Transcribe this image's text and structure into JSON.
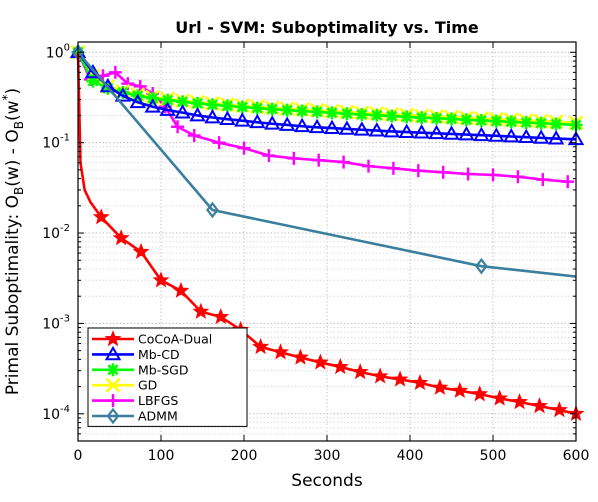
{
  "chart_data": {
    "type": "line",
    "title": "Url - SVM: Suboptimality vs. Time",
    "xlabel": "Seconds",
    "ylabel": {
      "main": "Primal Suboptimality: O",
      "sub1": "B",
      "mid": "(w) - O",
      "sub2": "B",
      "end": "(w",
      "sup": "*",
      "close": ")"
    },
    "xlim": [
      0,
      600
    ],
    "ylim": [
      5e-05,
      1.3
    ],
    "yscale": "log",
    "grid": "on",
    "legend_location": "bottom-left",
    "xticks": [
      0,
      100,
      200,
      300,
      400,
      500,
      600
    ],
    "yticks": [
      {
        "value": 1,
        "base": "10",
        "exp": "0"
      },
      {
        "value": 0.1,
        "base": "10",
        "exp": "-1"
      },
      {
        "value": 0.01,
        "base": "10",
        "exp": "-2"
      },
      {
        "value": 0.001,
        "base": "10",
        "exp": "-3"
      },
      {
        "value": 0.0001,
        "base": "10",
        "exp": "-4"
      }
    ],
    "series": [
      {
        "name": "CoCoA-Dual",
        "color": "#ff0000",
        "marker": "star",
        "x": [
          0,
          3,
          8,
          15,
          28,
          52,
          76,
          100,
          124,
          148,
          172,
          196,
          220,
          244,
          268,
          292,
          316,
          340,
          364,
          388,
          412,
          436,
          460,
          484,
          508,
          532,
          556,
          580,
          600
        ],
        "y": [
          1,
          0.06,
          0.03,
          0.022,
          0.015,
          0.0088,
          0.0062,
          0.003,
          0.0023,
          0.00135,
          0.00118,
          0.00085,
          0.00055,
          0.00048,
          0.00042,
          0.00037,
          0.00033,
          0.00029,
          0.00026,
          0.00024,
          0.00022,
          0.000195,
          0.00018,
          0.000165,
          0.000148,
          0.000135,
          0.000122,
          0.00011,
          0.0001
        ],
        "marker_x": [
          28,
          52,
          76,
          100,
          124,
          148,
          172,
          196,
          220,
          244,
          268,
          292,
          316,
          340,
          364,
          388,
          412,
          436,
          460,
          484,
          508,
          532,
          556,
          580,
          600
        ]
      },
      {
        "name": "Mb-CD",
        "color": "#0000ff",
        "marker": "triangle",
        "x": [
          0,
          18,
          36,
          54,
          72,
          90,
          108,
          126,
          144,
          162,
          180,
          198,
          216,
          234,
          252,
          270,
          288,
          306,
          324,
          342,
          360,
          378,
          396,
          414,
          432,
          450,
          468,
          486,
          504,
          522,
          540,
          558,
          576,
          600
        ],
        "y": [
          1,
          0.6,
          0.42,
          0.33,
          0.28,
          0.25,
          0.23,
          0.215,
          0.2,
          0.19,
          0.182,
          0.175,
          0.168,
          0.162,
          0.157,
          0.152,
          0.148,
          0.145,
          0.142,
          0.139,
          0.136,
          0.133,
          0.131,
          0.129,
          0.127,
          0.125,
          0.123,
          0.121,
          0.119,
          0.117,
          0.115,
          0.113,
          0.111,
          0.109
        ]
      },
      {
        "name": "Mb-SGD",
        "color": "#00ff00",
        "marker": "asterisk",
        "x": [
          0,
          18,
          36,
          54,
          72,
          90,
          108,
          126,
          144,
          162,
          180,
          198,
          216,
          234,
          252,
          270,
          288,
          306,
          324,
          342,
          360,
          378,
          396,
          414,
          432,
          450,
          468,
          486,
          504,
          522,
          540,
          558,
          576,
          600
        ],
        "y": [
          1,
          0.48,
          0.4,
          0.36,
          0.33,
          0.31,
          0.295,
          0.283,
          0.272,
          0.263,
          0.255,
          0.248,
          0.241,
          0.235,
          0.229,
          0.224,
          0.219,
          0.214,
          0.209,
          0.205,
          0.201,
          0.197,
          0.193,
          0.189,
          0.186,
          0.183,
          0.179,
          0.176,
          0.173,
          0.17,
          0.167,
          0.164,
          0.161,
          0.157
        ]
      },
      {
        "name": "GD",
        "color": "#ffff00",
        "marker": "x",
        "x": [
          0,
          18,
          36,
          54,
          72,
          90,
          108,
          126,
          144,
          162,
          180,
          198,
          216,
          234,
          252,
          270,
          288,
          306,
          324,
          342,
          360,
          378,
          396,
          414,
          432,
          450,
          468,
          486,
          504,
          522,
          540,
          558,
          576,
          600
        ],
        "y": [
          1,
          0.55,
          0.42,
          0.37,
          0.34,
          0.32,
          0.305,
          0.292,
          0.281,
          0.272,
          0.264,
          0.257,
          0.25,
          0.244,
          0.238,
          0.233,
          0.228,
          0.223,
          0.218,
          0.214,
          0.21,
          0.206,
          0.202,
          0.198,
          0.195,
          0.192,
          0.188,
          0.185,
          0.182,
          0.179,
          0.176,
          0.173,
          0.17,
          0.166
        ]
      },
      {
        "name": "LBFGS",
        "color": "#ff00ff",
        "marker": "plus",
        "x": [
          0,
          15,
          30,
          45,
          60,
          75,
          90,
          105,
          120,
          140,
          170,
          200,
          230,
          260,
          290,
          320,
          350,
          380,
          410,
          440,
          470,
          500,
          530,
          560,
          590
        ],
        "y": [
          1,
          0.5,
          0.55,
          0.6,
          0.45,
          0.42,
          0.35,
          0.25,
          0.15,
          0.12,
          0.1,
          0.087,
          0.072,
          0.067,
          0.064,
          0.061,
          0.055,
          0.052,
          0.049,
          0.047,
          0.045,
          0.044,
          0.042,
          0.039,
          0.037
        ]
      },
      {
        "name": "ADMM",
        "color": "#3b7f9f",
        "marker": "diamond",
        "x": [
          0,
          162,
          486,
          600
        ],
        "y": [
          1,
          0.018,
          0.0043,
          0.0033
        ],
        "marker_x": [
          0,
          162,
          486
        ]
      }
    ]
  }
}
